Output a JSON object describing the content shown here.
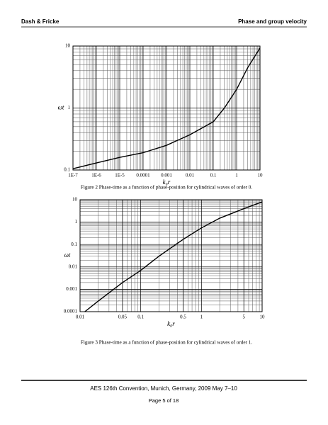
{
  "header": {
    "left": "Dash & Fricke",
    "right": "Phase and group velocity"
  },
  "chart_data": [
    {
      "type": "line",
      "log_x": true,
      "log_y": true,
      "grid": true,
      "minor_grid": true,
      "color": "#000000",
      "ylabel": "ωt",
      "xlabel": "k₀r",
      "caption": "Figure 2 Phase-time as a function of phase-position for cylindrical waves of order 0.",
      "x": [
        1e-07,
        1e-06,
        1e-05,
        0.0001,
        0.001,
        0.01,
        0.1,
        0.3,
        1,
        3,
        10
      ],
      "values": [
        0.105,
        0.13,
        0.16,
        0.19,
        0.25,
        0.37,
        0.6,
        1.0,
        2,
        4.5,
        9.3
      ],
      "xlim": [
        1e-07,
        10
      ],
      "ylim": [
        0.1,
        10
      ],
      "xticks": [
        {
          "value": 1e-07,
          "label": "1E-7"
        },
        {
          "value": 1e-06,
          "label": "1E-6"
        },
        {
          "value": 1e-05,
          "label": "1E-5"
        },
        0.0001,
        0.001,
        0.01,
        0.1,
        1,
        10
      ],
      "yticks": [
        0.1,
        1,
        10
      ]
    },
    {
      "type": "line",
      "log_x": true,
      "log_y": true,
      "grid": true,
      "minor_grid": true,
      "color": "#000000",
      "ylabel": "ωt",
      "xlabel": "k₀r",
      "caption": "Figure 3 Phase-time as a function of phase-position for cylindrical waves of order 1.",
      "x": [
        0.012,
        0.02,
        0.05,
        0.1,
        0.2,
        0.5,
        1,
        2,
        5,
        10
      ],
      "values": [
        0.0001,
        0.0003,
        0.002,
        0.007,
        0.03,
        0.17,
        0.55,
        1.5,
        4,
        8
      ],
      "xlim": [
        0.01,
        10
      ],
      "ylim": [
        0.0001,
        10
      ],
      "xticks": [
        0.01,
        0.05,
        0.1,
        0.5,
        1,
        5,
        10
      ],
      "yticks": [
        0.0001,
        0.001,
        0.01,
        0.1,
        1,
        10
      ]
    }
  ],
  "footer": {
    "line1": "AES 126th Convention, Munich, Germany, 2009 May 7–10",
    "line2": "Page 5 of 18"
  }
}
